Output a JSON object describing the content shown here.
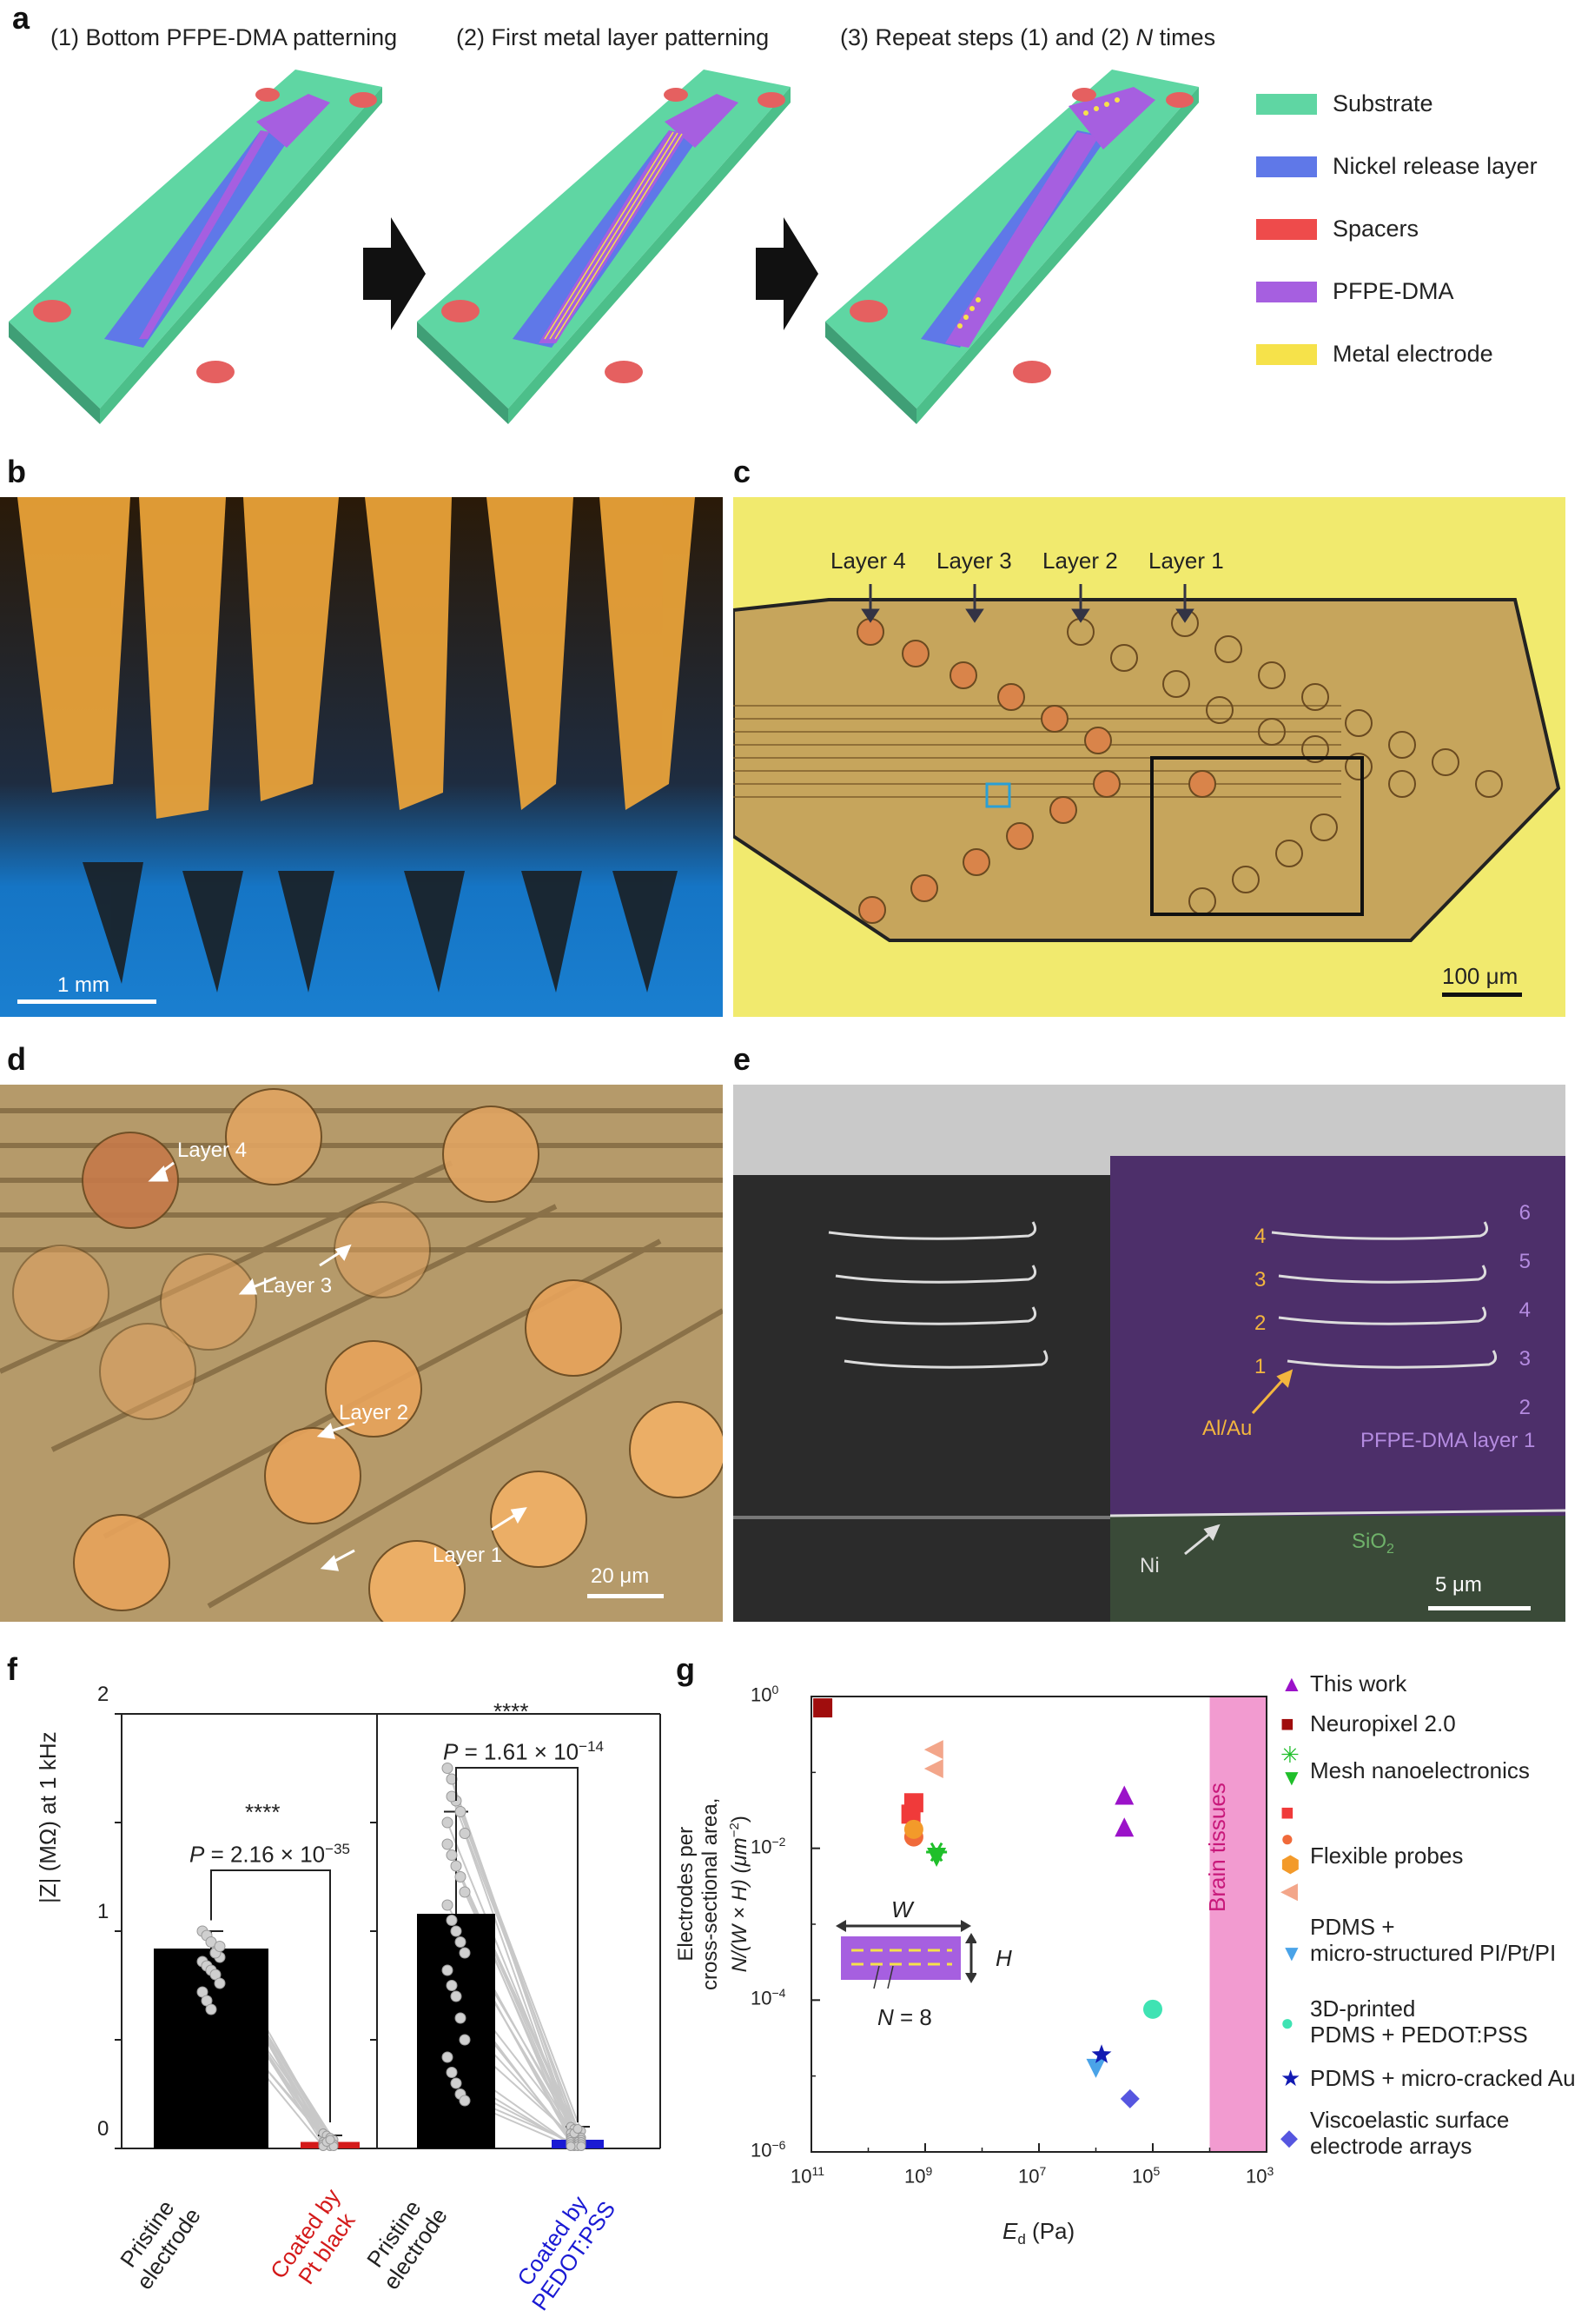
{
  "panels": {
    "a": "a",
    "b": "b",
    "c": "c",
    "d": "d",
    "e": "e",
    "f": "f",
    "g": "g"
  },
  "panel_a": {
    "step1_prefix": "(1) Bottom PFPE-DMA patterning",
    "step2_prefix": "(2) First metal layer patterning",
    "step3_text": "(3) Repeat steps (1) and (2) ",
    "step3_N": "N",
    "step3_suffix": " times",
    "legend": [
      {
        "label": "Substrate",
        "color": "#5fd6a3"
      },
      {
        "label": "Nickel release layer",
        "color": "#5f78e8"
      },
      {
        "label": "Spacers",
        "color": "#ee4b4b"
      },
      {
        "label": "PFPE-DMA",
        "color": "#a65fe0"
      },
      {
        "label": "Metal electrode",
        "color": "#f6e24a"
      }
    ]
  },
  "panel_b": {
    "scale": "1 mm"
  },
  "panel_c": {
    "layers": [
      "Layer 4",
      "Layer 3",
      "Layer 2",
      "Layer 1"
    ],
    "scale": "100 μm"
  },
  "panel_d": {
    "layers": [
      "Layer 4",
      "Layer 3",
      "Layer 2",
      "Layer 1"
    ],
    "scale": "20 μm"
  },
  "panel_e": {
    "right_numbers": [
      "6",
      "5",
      "4",
      "3",
      "2"
    ],
    "metal_numbers": [
      "4",
      "3",
      "2",
      "1"
    ],
    "al_au": "Al/Au",
    "pfpe": "PFPE-DMA layer 1",
    "ni": "Ni",
    "sio2_base": "SiO",
    "sio2_sub": "2",
    "scale": "5 μm"
  },
  "panel_f": {
    "ylabel": "|Z| (MΩ) at 1 kHz",
    "yticks": [
      "2",
      "1",
      "0"
    ],
    "left": {
      "stars": "****",
      "p_text": "P",
      "p_value": " = 2.16 × 10",
      "p_exp": "−35",
      "cat1": [
        "Pristine",
        "electrode"
      ],
      "cat2": [
        "Coated by",
        "Pt black"
      ]
    },
    "right": {
      "stars": "****",
      "p_text": "P",
      "p_value": " = 1.61 × 10",
      "p_exp": "−14",
      "cat1": [
        "Pristine",
        "electrode"
      ],
      "cat2": [
        "Coated by",
        "PEDOT:PSS"
      ]
    }
  },
  "chart_data": [
    {
      "type": "bar",
      "categories": [
        "Pristine electrode",
        "Coated by Pt black"
      ],
      "values": [
        0.92,
        0.03
      ],
      "errors": [
        0.08,
        0.03
      ],
      "ylabel": "|Z| (MΩ) at 1 kHz",
      "ylim": [
        0,
        2
      ],
      "colors": [
        "#000000",
        "#d41a1a"
      ],
      "pairs_before": [
        1.0,
        0.98,
        0.95,
        0.9,
        0.88,
        0.86,
        0.84,
        0.82,
        0.8,
        0.76,
        0.72,
        0.68,
        0.64,
        0.9,
        0.93
      ],
      "pairs_after": [
        0.07,
        0.06,
        0.05,
        0.04,
        0.03,
        0.03,
        0.02,
        0.02,
        0.02,
        0.02,
        0.01,
        0.01,
        0.01,
        0.03,
        0.04
      ]
    },
    {
      "type": "bar",
      "categories": [
        "Pristine electrode",
        "Coated by PEDOT:PSS"
      ],
      "values": [
        1.08,
        0.04
      ],
      "errors": [
        0.47,
        0.06
      ],
      "ylim": [
        0,
        2
      ],
      "colors": [
        "#000000",
        "#1a1ad4"
      ],
      "pairs_before": [
        1.75,
        1.7,
        1.6,
        1.55,
        1.45,
        1.4,
        1.35,
        1.3,
        1.25,
        1.18,
        1.12,
        1.05,
        1.0,
        0.95,
        0.9,
        0.82,
        0.75,
        0.7,
        0.6,
        0.5,
        0.42,
        0.35,
        0.3,
        0.25,
        0.22,
        1.5,
        1.62
      ],
      "pairs_after": [
        0.1,
        0.09,
        0.08,
        0.08,
        0.07,
        0.06,
        0.06,
        0.05,
        0.05,
        0.05,
        0.04,
        0.04,
        0.04,
        0.03,
        0.03,
        0.03,
        0.03,
        0.02,
        0.02,
        0.02,
        0.02,
        0.01,
        0.01,
        0.01,
        0.01,
        0.07,
        0.09
      ]
    },
    {
      "type": "scatter",
      "xlabel_base": "E",
      "xlabel_sub": "d",
      "xlabel_unit": " (Pa)",
      "ylabel_line1": "Electrodes per",
      "ylabel_line2": "cross-sectional area,",
      "ylabel_line3": "N/(W × H) (μm",
      "ylabel_line3_sup": "−2",
      "ylabel_line3_end": ")",
      "x_log_range": [
        11,
        3
      ],
      "y_log_range": [
        -6,
        0
      ],
      "xticks": [
        {
          "base": "10",
          "exp": "11",
          "v": 11
        },
        {
          "base": "10",
          "exp": "9",
          "v": 9
        },
        {
          "base": "10",
          "exp": "7",
          "v": 7
        },
        {
          "base": "10",
          "exp": "5",
          "v": 5
        },
        {
          "base": "10",
          "exp": "3",
          "v": 3
        }
      ],
      "yticks": [
        {
          "base": "10",
          "exp": "0",
          "v": 0
        },
        {
          "base": "10",
          "exp": "−2",
          "v": -2
        },
        {
          "base": "10",
          "exp": "−4",
          "v": -4
        },
        {
          "base": "10",
          "exp": "−6",
          "v": -6
        }
      ],
      "brain_tissues": "Brain tissues",
      "brain_range": [
        4,
        3
      ],
      "inset": {
        "W": "W",
        "H": "H",
        "N_text": "N",
        "N_value": " = 8"
      },
      "series": [
        {
          "name": "This work",
          "symbol": "triangle-up",
          "color": "#9b12c9",
          "points": [
            [
              5.5,
              -1.3
            ],
            [
              5.5,
              -1.72
            ]
          ]
        },
        {
          "name": "Neuropixel 2.0",
          "symbol": "square",
          "color": "#a00d0d",
          "points": [
            [
              10.8,
              -0.15
            ]
          ]
        },
        {
          "name": "Mesh nanoelectronics",
          "symbol": "asterisk+triangle-down",
          "color": "#1fbf2a",
          "points": [
            [
              8.8,
              -2.05
            ]
          ]
        },
        {
          "name": "Flexible probes",
          "symbol": "multi",
          "color": "#f06a3a",
          "points": [
            [
              9.2,
              -1.4
            ],
            [
              9.2,
              -1.85
            ],
            [
              8.85,
              -0.7
            ],
            [
              8.85,
              -0.95
            ],
            [
              9.25,
              -1.55
            ],
            [
              9.2,
              -1.75
            ]
          ]
        },
        {
          "name": "PDMS + micro-structured PI/Pt/PI",
          "symbol": "triangle-down",
          "color": "#4aa3e8",
          "points": [
            [
              6.0,
              -4.9
            ]
          ]
        },
        {
          "name": "3D-printed PDMS + PEDOT:PSS",
          "symbol": "circle",
          "color": "#3fe3b3",
          "points": [
            [
              5.0,
              -4.12
            ]
          ]
        },
        {
          "name": "PDMS + micro-cracked Au",
          "symbol": "star",
          "color": "#121ab2",
          "points": [
            [
              5.9,
              -4.72
            ]
          ]
        },
        {
          "name": "Viscoelastic surface electrode arrays",
          "symbol": "diamond",
          "color": "#5656e0",
          "points": [
            [
              5.4,
              -5.3
            ]
          ]
        }
      ]
    }
  ],
  "panel_g_legend": [
    {
      "lines": [
        "This work"
      ],
      "sym": "▲",
      "color": "#9b12c9"
    },
    {
      "lines": [
        "Neuropixel 2.0"
      ],
      "sym": "■",
      "color": "#a00d0d"
    },
    {
      "lines": [
        "Mesh nanoelectronics"
      ],
      "sym": "✳",
      "color": "#1fbf2a"
    },
    {
      "lines": [
        "Flexible probes"
      ],
      "sym": "■",
      "color": "#f03a3a"
    },
    {
      "lines": [
        "PDMS +",
        "micro-structured PI/Pt/PI"
      ],
      "sym": "▼",
      "color": "#4aa3e8"
    },
    {
      "lines": [
        "3D-printed",
        "PDMS + PEDOT:PSS"
      ],
      "sym": "●",
      "color": "#3fe3b3"
    },
    {
      "lines": [
        "PDMS + micro-cracked Au"
      ],
      "sym": "★",
      "color": "#121ab2"
    },
    {
      "lines": [
        "Viscoelastic surface",
        "electrode arrays"
      ],
      "sym": "◆",
      "color": "#5656e0"
    }
  ]
}
